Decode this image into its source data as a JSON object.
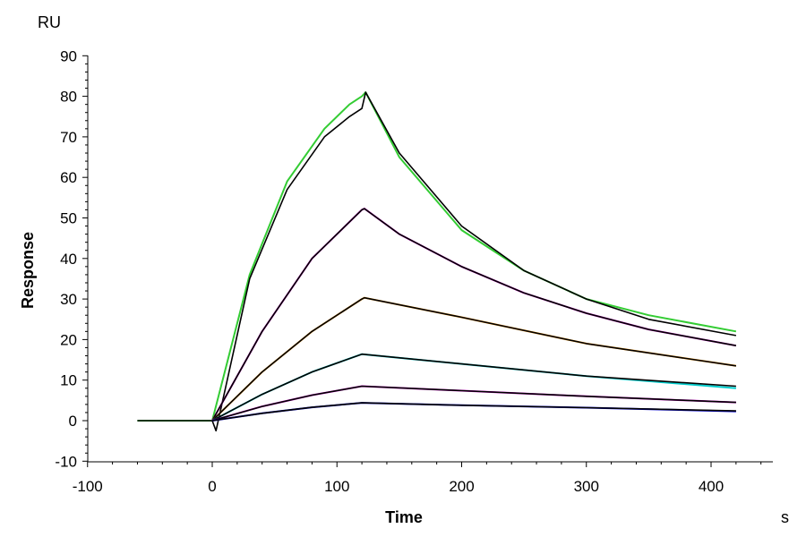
{
  "chart_data": {
    "type": "line",
    "xlabel": "Time",
    "ylabel": "Response",
    "x_unit": "s",
    "y_unit": "RU",
    "xlim": [
      -100,
      450
    ],
    "ylim": [
      -10,
      90
    ],
    "x_ticks": [
      -100,
      0,
      100,
      200,
      300,
      400
    ],
    "y_ticks": [
      -10,
      0,
      10,
      20,
      30,
      40,
      50,
      60,
      70,
      80,
      90
    ],
    "x_tick_labels": [
      "-100",
      "0",
      "100",
      "200",
      "300",
      "400"
    ],
    "y_tick_labels": [
      "-10",
      "0",
      "10",
      "20",
      "30",
      "40",
      "50",
      "60",
      "70",
      "80",
      "90"
    ],
    "grid": false,
    "legend": "none",
    "series": [
      {
        "color": "#33cc33",
        "style": "measured",
        "points": [
          [
            -60,
            0
          ],
          [
            0,
            0
          ],
          [
            30,
            36
          ],
          [
            60,
            59
          ],
          [
            90,
            72
          ],
          [
            110,
            78
          ],
          [
            120,
            80
          ],
          [
            123,
            81
          ],
          [
            150,
            65
          ],
          [
            200,
            47
          ],
          [
            250,
            37
          ],
          [
            300,
            30
          ],
          [
            350,
            26
          ],
          [
            420,
            22
          ]
        ]
      },
      {
        "color": "#000000",
        "style": "fit",
        "points": [
          [
            -60,
            0
          ],
          [
            0,
            0
          ],
          [
            3,
            -2.5
          ],
          [
            30,
            35
          ],
          [
            60,
            57
          ],
          [
            90,
            70
          ],
          [
            110,
            75
          ],
          [
            120,
            77
          ],
          [
            123,
            81
          ],
          [
            150,
            66
          ],
          [
            200,
            48
          ],
          [
            250,
            37
          ],
          [
            300,
            30
          ],
          [
            350,
            25
          ],
          [
            420,
            21
          ]
        ]
      },
      {
        "color": "#cc00cc",
        "style": "measured",
        "points": [
          [
            0,
            0
          ],
          [
            40,
            22
          ],
          [
            80,
            40
          ],
          [
            120,
            52
          ],
          [
            122,
            52.3
          ],
          [
            150,
            46
          ],
          [
            200,
            38
          ],
          [
            250,
            31.5
          ],
          [
            300,
            26.5
          ],
          [
            350,
            22.5
          ],
          [
            420,
            18.5
          ]
        ]
      },
      {
        "color": "#000000",
        "style": "fit",
        "points": [
          [
            0,
            0
          ],
          [
            40,
            22
          ],
          [
            80,
            40
          ],
          [
            120,
            52
          ],
          [
            122,
            52.3
          ],
          [
            150,
            46
          ],
          [
            200,
            38
          ],
          [
            250,
            31.5
          ],
          [
            300,
            26.5
          ],
          [
            350,
            22.5
          ],
          [
            420,
            18.5
          ]
        ]
      },
      {
        "color": "#ff9900",
        "style": "measured",
        "points": [
          [
            0,
            0
          ],
          [
            40,
            12
          ],
          [
            80,
            22
          ],
          [
            120,
            30
          ],
          [
            122,
            30.3
          ],
          [
            200,
            25.5
          ],
          [
            300,
            19
          ],
          [
            420,
            13.5
          ]
        ]
      },
      {
        "color": "#000000",
        "style": "fit",
        "points": [
          [
            0,
            0
          ],
          [
            40,
            12
          ],
          [
            80,
            22
          ],
          [
            120,
            30
          ],
          [
            122,
            30.3
          ],
          [
            200,
            25.5
          ],
          [
            300,
            19
          ],
          [
            420,
            13.5
          ]
        ]
      },
      {
        "color": "#00cccc",
        "style": "measured",
        "points": [
          [
            0,
            0
          ],
          [
            40,
            6.5
          ],
          [
            80,
            12
          ],
          [
            120,
            16.4
          ],
          [
            200,
            14
          ],
          [
            300,
            11
          ],
          [
            420,
            8
          ]
        ]
      },
      {
        "color": "#000000",
        "style": "fit",
        "points": [
          [
            0,
            0
          ],
          [
            40,
            6.5
          ],
          [
            80,
            12
          ],
          [
            120,
            16.4
          ],
          [
            200,
            14
          ],
          [
            300,
            11
          ],
          [
            420,
            8.5
          ]
        ]
      },
      {
        "color": "#cc00cc",
        "style": "measured",
        "points": [
          [
            0,
            0
          ],
          [
            40,
            3.5
          ],
          [
            80,
            6.3
          ],
          [
            120,
            8.5
          ],
          [
            200,
            7.4
          ],
          [
            300,
            6
          ],
          [
            420,
            4.5
          ]
        ]
      },
      {
        "color": "#000000",
        "style": "fit",
        "points": [
          [
            0,
            0
          ],
          [
            40,
            3.5
          ],
          [
            80,
            6.3
          ],
          [
            120,
            8.5
          ],
          [
            200,
            7.4
          ],
          [
            300,
            6
          ],
          [
            420,
            4.5
          ]
        ]
      },
      {
        "color": "#0000cc",
        "style": "measured",
        "points": [
          [
            0,
            0
          ],
          [
            40,
            1.8
          ],
          [
            80,
            3.3
          ],
          [
            120,
            4.4
          ],
          [
            200,
            3.8
          ],
          [
            300,
            3.2
          ],
          [
            420,
            2.3
          ]
        ]
      },
      {
        "color": "#000000",
        "style": "fit",
        "points": [
          [
            0,
            0
          ],
          [
            40,
            1.8
          ],
          [
            80,
            3.3
          ],
          [
            120,
            4.4
          ],
          [
            200,
            3.8
          ],
          [
            300,
            3.2
          ],
          [
            420,
            2.4
          ]
        ]
      }
    ]
  }
}
